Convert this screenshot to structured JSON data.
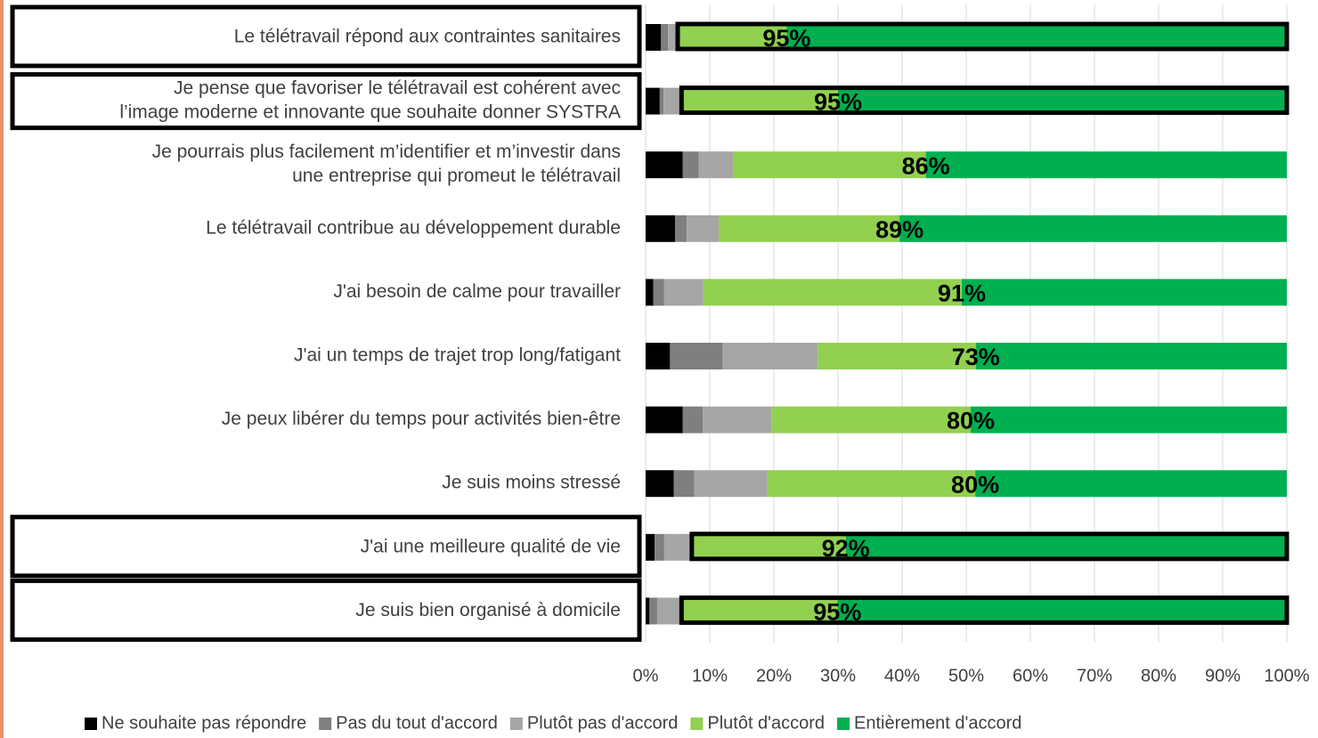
{
  "chart_data": {
    "type": "stacked_barh",
    "categories": [
      [
        "Le télétravail répond aux contraintes sanitaires"
      ],
      [
        "Je pense que favoriser le télétravail est cohérent avec",
        "l’image moderne et innovante que souhaite donner SYSTRA"
      ],
      [
        "Je pourrais plus facilement m’identifier et m’investir dans",
        "une entreprise qui promeut le télétravail"
      ],
      [
        "Le télétravail contribue au développement durable"
      ],
      [
        "J'ai besoin de calme pour travailler"
      ],
      [
        "J'ai un temps de trajet trop long/fatigant"
      ],
      [
        "Je peux libérer du temps pour activités bien-être"
      ],
      [
        "Je suis moins stressé"
      ],
      [
        "J'ai une meilleure qualité de vie"
      ],
      [
        "Je suis bien organisé à domicile"
      ]
    ],
    "series": [
      {
        "name": "Ne souhaite pas répondre",
        "color": "#000000",
        "values": [
          2.4,
          2.2,
          5.8,
          4.6,
          1.2,
          3.8,
          5.8,
          4.4,
          1.4,
          0.6
        ]
      },
      {
        "name": "Pas du tout d'accord",
        "color": "#7f7f7f",
        "values": [
          1.1,
          0.6,
          2.5,
          1.8,
          1.7,
          8.2,
          3.1,
          3.2,
          1.5,
          1.2
        ]
      },
      {
        "name": "Plutôt pas d'accord",
        "color": "#a6a6a6",
        "values": [
          1.5,
          2.8,
          5.4,
          5.0,
          6.1,
          14.9,
          10.7,
          11.4,
          4.3,
          3.8
        ]
      },
      {
        "name": "Plutôt d'accord",
        "color": "#92d050",
        "values": [
          17,
          24.4,
          30,
          28.2,
          40.3,
          24.6,
          31.1,
          32.4,
          24,
          24.3
        ]
      },
      {
        "name": "Entièrement d'accord",
        "color": "#00b050",
        "values": [
          78,
          70,
          56.3,
          60.4,
          50.7,
          48.5,
          49.3,
          48.6,
          68.8,
          70.1
        ]
      }
    ],
    "agreement": {
      "values": [
        95,
        95,
        86,
        89,
        91,
        73,
        80,
        80,
        92,
        95
      ],
      "value_labels": [
        "95%",
        "95%",
        "86%",
        "89%",
        "91%",
        "73%",
        "80%",
        "80%",
        "92%",
        "95%"
      ]
    },
    "highlight": [
      true,
      true,
      false,
      false,
      false,
      false,
      false,
      false,
      true,
      true
    ],
    "xlim": [
      0,
      100
    ],
    "xticks": [
      {
        "value": 0,
        "label": "0%"
      },
      {
        "value": 10,
        "label": "10%"
      },
      {
        "value": 20,
        "label": "20%"
      },
      {
        "value": 30,
        "label": "30%"
      },
      {
        "value": 40,
        "label": "40%"
      },
      {
        "value": 50,
        "label": "50%"
      },
      {
        "value": 60,
        "label": "60%"
      },
      {
        "value": 70,
        "label": "70%"
      },
      {
        "value": 80,
        "label": "80%"
      },
      {
        "value": 90,
        "label": "90%"
      },
      {
        "value": 100,
        "label": "100%"
      }
    ],
    "grid": true,
    "legend": "bottom"
  }
}
